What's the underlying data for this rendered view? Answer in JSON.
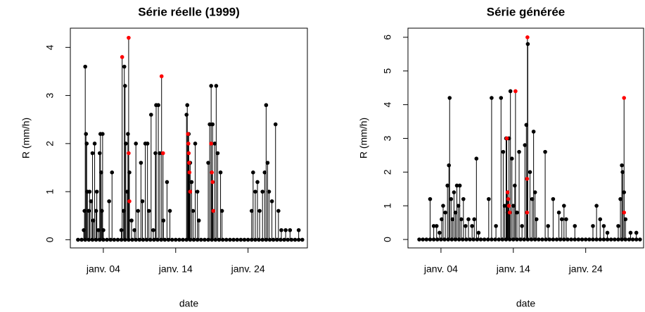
{
  "chart_data": [
    {
      "type": "scatter",
      "title": "Série réelle (1999)",
      "xlabel": "date",
      "ylabel": "R (mm/h)",
      "xlim": [
        -0.56,
        32.2
      ],
      "ylim": [
        -0.17,
        4.4
      ],
      "xticks": [
        {
          "value": 4,
          "label": "janv. 04"
        },
        {
          "value": 14,
          "label": "janv. 14"
        },
        {
          "value": 24,
          "label": "janv. 24"
        }
      ],
      "yticks": [
        0,
        1,
        2,
        3,
        4
      ],
      "series": [
        {
          "color": "#000000",
          "x": [
            0.5,
            1,
            1.5,
            2,
            2.5,
            3,
            3.5,
            4,
            4.5,
            5,
            5.5,
            6,
            6.5,
            7,
            7.5,
            8,
            8.5,
            9,
            9.5,
            10,
            10.5,
            11,
            11.5,
            12,
            12.5,
            13,
            13.5,
            14,
            14.5,
            15,
            15.5,
            16,
            16.5,
            17,
            17.5,
            18,
            18.5,
            19,
            19.5,
            20,
            20.5,
            21,
            21.5,
            22,
            22.5,
            23,
            23.5,
            24,
            24.5,
            25,
            25.5,
            26,
            26.5,
            27,
            27.5,
            28,
            28.5,
            29,
            29.5,
            30,
            30.5,
            31,
            31.5
          ],
          "values": [
            0,
            0,
            0,
            0,
            0,
            0,
            0,
            0,
            0,
            0,
            0,
            0,
            0,
            0,
            0,
            0,
            0,
            0,
            0,
            0,
            0,
            0,
            0,
            0,
            0,
            0,
            0,
            0,
            0,
            0,
            0,
            0,
            0,
            0,
            0,
            0,
            0,
            0,
            0,
            0,
            0,
            0,
            0,
            0,
            0,
            0,
            0,
            0,
            0,
            0,
            0,
            0,
            0,
            0,
            0,
            0,
            0,
            0,
            0,
            0,
            0,
            0,
            0
          ]
        },
        {
          "color": "#000000",
          "x": [
            1.3,
            1.4,
            1.5,
            1.6,
            1.7,
            1.8,
            2.0,
            2.1,
            2.3,
            2.5,
            2.6,
            2.8,
            3.0,
            3.1,
            3.3,
            3.5,
            3.6,
            3.7,
            3.8,
            3.9,
            4.0,
            4.8,
            5.2,
            6.5,
            6.8,
            6.9,
            7.0,
            7.1,
            7.3,
            7.4,
            7.6,
            7.9,
            8.3,
            8.5,
            8.8,
            9.2,
            9.4,
            9.8,
            10.1,
            10.3,
            10.6,
            10.9,
            11.2,
            11.3,
            11.6,
            11.8,
            12.3,
            12.8,
            13.2,
            15.5,
            15.6,
            15.8,
            16.0,
            16.2,
            16.4,
            16.7,
            17.0,
            17.2,
            18.5,
            18.7,
            18.9,
            19.1,
            19.4,
            19.6,
            19.8,
            20.2,
            20.4,
            24.5,
            24.7,
            25.0,
            25.3,
            25.6,
            26.0,
            26.3,
            26.5,
            26.7,
            26.9,
            27.3,
            27.8,
            28.2,
            28.6,
            29.2,
            29.8,
            31.0
          ],
          "values": [
            0.2,
            0.6,
            3.6,
            2.2,
            2.0,
            1.0,
            0.6,
            1.0,
            0.8,
            1.8,
            0.4,
            2.0,
            0.6,
            1.0,
            0.2,
            1.8,
            2.2,
            1.4,
            0.6,
            2.2,
            0.2,
            0.8,
            1.4,
            0.2,
            0.6,
            3.6,
            3.2,
            2.0,
            1.0,
            2.2,
            1.4,
            0.4,
            0.2,
            2.0,
            0.6,
            1.6,
            0.8,
            2.0,
            2.0,
            0.6,
            2.6,
            0.2,
            1.8,
            2.8,
            2.8,
            1.8,
            0.4,
            1.2,
            0.6,
            2.6,
            2.8,
            2.2,
            1.6,
            1.2,
            0.6,
            2.0,
            1.0,
            0.4,
            1.6,
            2.4,
            3.2,
            2.4,
            2.0,
            3.2,
            1.8,
            1.4,
            0.6,
            0.6,
            1.4,
            1.0,
            1.2,
            0.6,
            1.0,
            1.4,
            2.8,
            1.6,
            1.0,
            0.8,
            2.4,
            0.6,
            0.2,
            0.2,
            0.2,
            0.2
          ]
        },
        {
          "color": "#ff0000",
          "x": [
            6.6,
            7.5,
            7.5,
            7.6,
            12.05,
            12.25,
            15.7,
            15.75,
            15.8,
            15.85,
            15.9,
            16.0,
            18.9,
            19.0,
            19.1,
            19.2
          ],
          "values": [
            3.8,
            4.2,
            1.8,
            0.8,
            3.4,
            1.8,
            2.2,
            2.0,
            1.8,
            1.6,
            1.4,
            1.0,
            2.0,
            1.4,
            1.2,
            0.6
          ]
        }
      ]
    },
    {
      "type": "scatter",
      "title": "Série générée",
      "xlabel": "date",
      "ylabel": "R (mm/h)",
      "xlim": [
        -0.56,
        32.0
      ],
      "ylim": [
        -0.25,
        6.27
      ],
      "xticks": [
        {
          "value": 4,
          "label": "janv. 04"
        },
        {
          "value": 14,
          "label": "janv. 14"
        },
        {
          "value": 24,
          "label": "janv. 24"
        }
      ],
      "yticks": [
        0,
        1,
        2,
        3,
        4,
        5,
        6
      ],
      "series": [
        {
          "color": "#000000",
          "x": [
            1,
            1.5,
            2,
            2.5,
            3,
            3.5,
            4,
            4.5,
            5,
            5.5,
            6,
            6.5,
            7,
            7.5,
            8,
            8.5,
            9,
            9.5,
            10,
            10.5,
            11,
            11.5,
            12,
            12.5,
            13,
            13.5,
            14,
            14.5,
            15,
            15.5,
            16,
            16.5,
            17,
            17.5,
            18,
            18.5,
            19,
            19.5,
            20,
            20.5,
            21,
            21.5,
            22,
            22.5,
            23,
            23.5,
            24,
            24.5,
            25,
            25.5,
            26,
            26.5,
            27,
            27.5,
            28,
            28.5,
            29,
            29.5,
            30,
            30.5,
            31,
            31.5
          ],
          "values": [
            0,
            0,
            0,
            0,
            0,
            0,
            0,
            0,
            0,
            0,
            0,
            0,
            0,
            0,
            0,
            0,
            0,
            0,
            0,
            0,
            0,
            0,
            0,
            0,
            0,
            0,
            0,
            0,
            0,
            0,
            0,
            0,
            0,
            0,
            0,
            0,
            0,
            0,
            0,
            0,
            0,
            0,
            0,
            0,
            0,
            0,
            0,
            0,
            0,
            0,
            0,
            0,
            0,
            0,
            0,
            0,
            0,
            0,
            0,
            0,
            0,
            0
          ]
        },
        {
          "color": "#000000",
          "x": [
            2.5,
            3.0,
            3.4,
            3.8,
            4.1,
            4.3,
            4.6,
            4.9,
            5.1,
            5.2,
            5.4,
            5.6,
            5.8,
            6.0,
            6.2,
            6.4,
            6.6,
            6.8,
            7.1,
            7.4,
            7.8,
            8.3,
            8.6,
            8.9,
            9.2,
            10.6,
            11.0,
            11.6,
            12.3,
            12.6,
            12.8,
            13.0,
            13.2,
            13.4,
            13.6,
            13.8,
            14.0,
            14.2,
            14.5,
            14.8,
            15.2,
            15.6,
            15.8,
            16.0,
            16.3,
            16.6,
            16.8,
            17.0,
            17.2,
            18.4,
            18.8,
            19.5,
            20.3,
            20.7,
            21.0,
            21.3,
            22.5,
            25.0,
            25.5,
            26.0,
            26.5,
            27.0,
            28.5,
            28.8,
            29.0,
            29.1,
            29.3,
            29.5,
            30.2,
            31.0
          ],
          "values": [
            1.2,
            0.4,
            0.4,
            0.2,
            0.6,
            1.0,
            0.8,
            1.6,
            2.2,
            4.2,
            1.2,
            0.6,
            1.4,
            0.8,
            1.6,
            1.0,
            1.6,
            0.6,
            1.2,
            0.4,
            0.6,
            0.4,
            0.6,
            2.4,
            0.2,
            1.2,
            4.2,
            0.4,
            4.2,
            2.6,
            1.0,
            3.0,
            0.8,
            3.0,
            4.4,
            2.4,
            1.0,
            1.6,
            0.8,
            2.6,
            0.4,
            2.8,
            3.4,
            5.8,
            2.0,
            1.2,
            3.2,
            1.4,
            0.6,
            2.6,
            0.4,
            1.2,
            0.8,
            0.6,
            1.0,
            0.6,
            0.4,
            0.4,
            1.0,
            0.6,
            0.4,
            0.2,
            0.4,
            1.2,
            2.2,
            2.0,
            1.4,
            0.6,
            0.2,
            0.2
          ]
        },
        {
          "color": "#ff0000",
          "x": [
            13.1,
            13.2,
            13.3,
            13.4,
            13.5,
            14.3,
            15.95,
            15.9,
            15.9,
            29.3,
            29.3
          ],
          "values": [
            3.0,
            1.4,
            1.2,
            1.0,
            0.8,
            4.4,
            6.0,
            1.8,
            0.8,
            4.2,
            0.8
          ]
        }
      ]
    }
  ]
}
